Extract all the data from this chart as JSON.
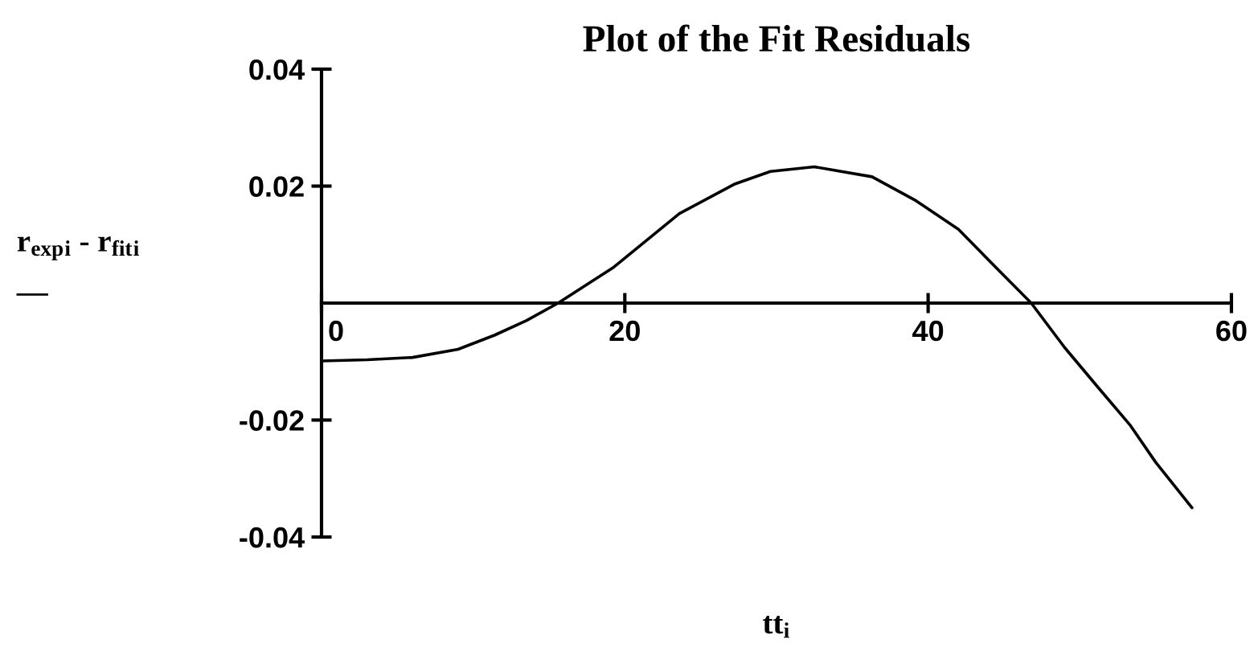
{
  "chart_data": {
    "type": "line",
    "title": "Plot of the Fit Residuals",
    "xlabel": "tt$_{i}$",
    "ylabel": "r$_{exp}$$_{i}$ - r$_{fit}$$_{i}$\n—",
    "x": [
      0,
      3,
      6,
      9,
      11.4,
      13.5,
      15.6,
      19.2,
      23.6,
      27.2,
      29.6,
      32.5,
      36.3,
      39.2,
      42,
      44.5,
      46.8,
      49,
      51.2,
      53.3,
      55,
      57.4
    ],
    "series": [
      {
        "color": "#000000",
        "values": [
          -0.0099,
          -0.0097,
          -0.0093,
          -0.0079,
          -0.0055,
          -0.003,
          0,
          0.006,
          0.0153,
          0.0203,
          0.0225,
          0.0233,
          0.0216,
          0.0175,
          0.0126,
          0.006,
          0,
          -0.0076,
          -0.0144,
          -0.0208,
          -0.0272,
          -0.035
        ]
      }
    ],
    "xlim": [
      0,
      60
    ],
    "ylim": [
      -0.04,
      0.04
    ],
    "xticks": [
      0,
      20,
      40,
      60
    ],
    "yticks": [
      -0.04,
      -0.02,
      0.02,
      0.04
    ],
    "grid": false,
    "legend": false,
    "line_style": "solid",
    "marker": "none"
  }
}
